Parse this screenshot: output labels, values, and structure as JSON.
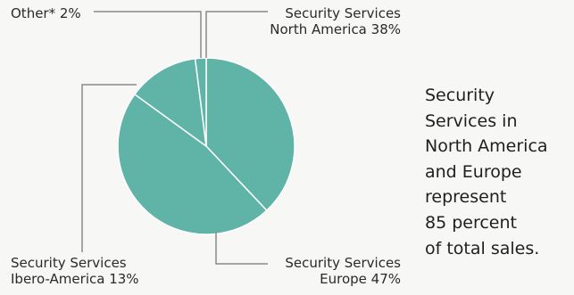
{
  "chart_data": {
    "type": "pie",
    "start_angle_deg": 0,
    "direction": "clockwise",
    "slices": [
      {
        "lines": [
          "Security Services",
          "North America 38%"
        ],
        "value": 38,
        "color": "#5fb3a7"
      },
      {
        "lines": [
          "Security Services",
          "Europe 47%"
        ],
        "value": 47,
        "color": "#5fb3a7"
      },
      {
        "lines": [
          "Security Services",
          "Ibero-America 13%"
        ],
        "value": 13,
        "color": "#5fb3a7"
      },
      {
        "lines": [
          "Other* 2%"
        ],
        "value": 2,
        "color": "#5fb3a7"
      }
    ],
    "slice_border_color": "#ffffff",
    "leader_line_color": "#8a8a8a"
  },
  "note": {
    "lines": [
      "Security",
      "Services in",
      "North America",
      "and Europe",
      "represent",
      "85 percent",
      "of total sales."
    ]
  }
}
